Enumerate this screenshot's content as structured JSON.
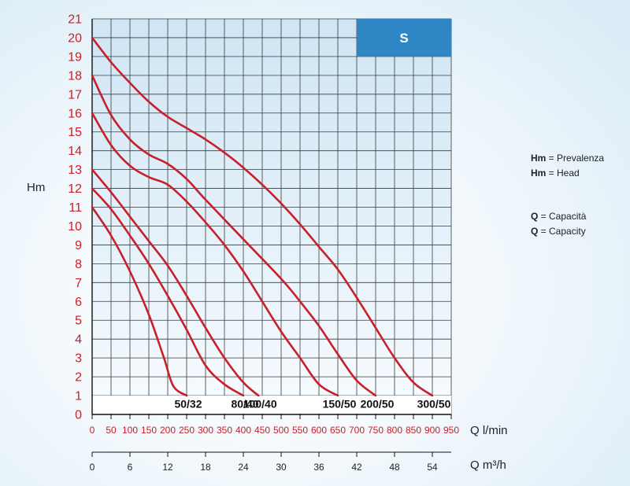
{
  "chart_data": {
    "type": "line",
    "badge": "S",
    "ylabel": "Hm",
    "xlabel": "Q l/min",
    "x2label": "Q m³/h",
    "xlim": [
      0,
      950
    ],
    "ylim": [
      0,
      21
    ],
    "x_ticks": [
      0,
      50,
      100,
      150,
      200,
      250,
      300,
      350,
      400,
      450,
      500,
      550,
      600,
      650,
      700,
      750,
      800,
      850,
      900,
      950
    ],
    "y_ticks": [
      0,
      1,
      2,
      3,
      4,
      5,
      6,
      7,
      8,
      9,
      10,
      11,
      12,
      13,
      14,
      15,
      16,
      17,
      18,
      19,
      20,
      21
    ],
    "x2_ticks": [
      0,
      6,
      12,
      18,
      24,
      30,
      36,
      42,
      48,
      54
    ],
    "series": [
      {
        "name": "50/32",
        "points": [
          [
            0,
            11
          ],
          [
            50,
            9.5
          ],
          [
            100,
            7.6
          ],
          [
            150,
            5.3
          ],
          [
            190,
            3
          ],
          [
            215,
            1.5
          ],
          [
            250,
            1
          ]
        ]
      },
      {
        "name": "80/40",
        "points": [
          [
            0,
            12
          ],
          [
            50,
            10.9
          ],
          [
            100,
            9.5
          ],
          [
            150,
            8
          ],
          [
            200,
            6.3
          ],
          [
            250,
            4.5
          ],
          [
            300,
            2.6
          ],
          [
            350,
            1.6
          ],
          [
            400,
            1
          ]
        ]
      },
      {
        "name": "100/40",
        "points": [
          [
            0,
            13
          ],
          [
            50,
            11.8
          ],
          [
            100,
            10.5
          ],
          [
            150,
            9.2
          ],
          [
            200,
            7.9
          ],
          [
            250,
            6.3
          ],
          [
            300,
            4.6
          ],
          [
            350,
            3
          ],
          [
            400,
            1.7
          ],
          [
            440,
            1
          ]
        ]
      },
      {
        "name": "150/50",
        "points": [
          [
            0,
            16
          ],
          [
            50,
            14.3
          ],
          [
            100,
            13.2
          ],
          [
            150,
            12.6
          ],
          [
            200,
            12.2
          ],
          [
            250,
            11.3
          ],
          [
            300,
            10.2
          ],
          [
            350,
            9
          ],
          [
            400,
            7.6
          ],
          [
            450,
            6
          ],
          [
            500,
            4.4
          ],
          [
            550,
            3
          ],
          [
            600,
            1.6
          ],
          [
            650,
            1
          ]
        ]
      },
      {
        "name": "200/50",
        "points": [
          [
            0,
            18
          ],
          [
            50,
            15.9
          ],
          [
            100,
            14.6
          ],
          [
            150,
            13.8
          ],
          [
            200,
            13.3
          ],
          [
            250,
            12.5
          ],
          [
            300,
            11.4
          ],
          [
            400,
            9.3
          ],
          [
            500,
            7.2
          ],
          [
            550,
            6
          ],
          [
            600,
            4.7
          ],
          [
            650,
            3.2
          ],
          [
            700,
            1.8
          ],
          [
            750,
            1
          ]
        ]
      },
      {
        "name": "300/50",
        "points": [
          [
            0,
            20
          ],
          [
            50,
            18.7
          ],
          [
            100,
            17.6
          ],
          [
            150,
            16.6
          ],
          [
            200,
            15.8
          ],
          [
            250,
            15.2
          ],
          [
            300,
            14.6
          ],
          [
            350,
            13.9
          ],
          [
            400,
            13.1
          ],
          [
            450,
            12.2
          ],
          [
            500,
            11.2
          ],
          [
            550,
            10.1
          ],
          [
            600,
            8.9
          ],
          [
            650,
            7.7
          ],
          [
            700,
            6.2
          ],
          [
            750,
            4.6
          ],
          [
            800,
            3
          ],
          [
            850,
            1.7
          ],
          [
            900,
            1
          ]
        ]
      }
    ],
    "colors": {
      "curve": "#c8202a",
      "tick_red": "#c8202a",
      "grid": "#3a3a3a",
      "plot_top": "#cfe5f4",
      "plot_bottom": "#f7fbfe",
      "badge": "#2e87c4",
      "badge_text": "#ffffff"
    }
  },
  "legend": {
    "hm_abbr": "Hm",
    "hm_it": " = Prevalenza",
    "hm_en": " = Head",
    "q_abbr": "Q",
    "q_it": " = Capacità",
    "q_en": " = Capacity"
  }
}
